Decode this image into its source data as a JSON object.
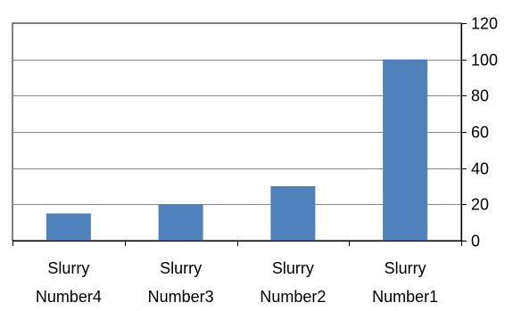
{
  "chart_data": {
    "type": "bar",
    "categories": [
      [
        "Slurry",
        "Number4"
      ],
      [
        "Slurry",
        "Number3"
      ],
      [
        "Slurry",
        "Number2"
      ],
      [
        "Slurry",
        "Number1"
      ]
    ],
    "series": [
      {
        "values": [
          15,
          20,
          30,
          100
        ]
      }
    ],
    "ylim": [
      0,
      120
    ],
    "yticks": [
      0,
      20,
      40,
      60,
      80,
      100,
      120
    ],
    "y_axis_position": "right",
    "grid": true,
    "legend": "none",
    "title": "",
    "xlabel": "",
    "ylabel": ""
  },
  "colors": {
    "bar": "#4F81BD",
    "axis": "#000000",
    "grid": "#868686",
    "border": "#000000",
    "background": "#ffffff"
  }
}
